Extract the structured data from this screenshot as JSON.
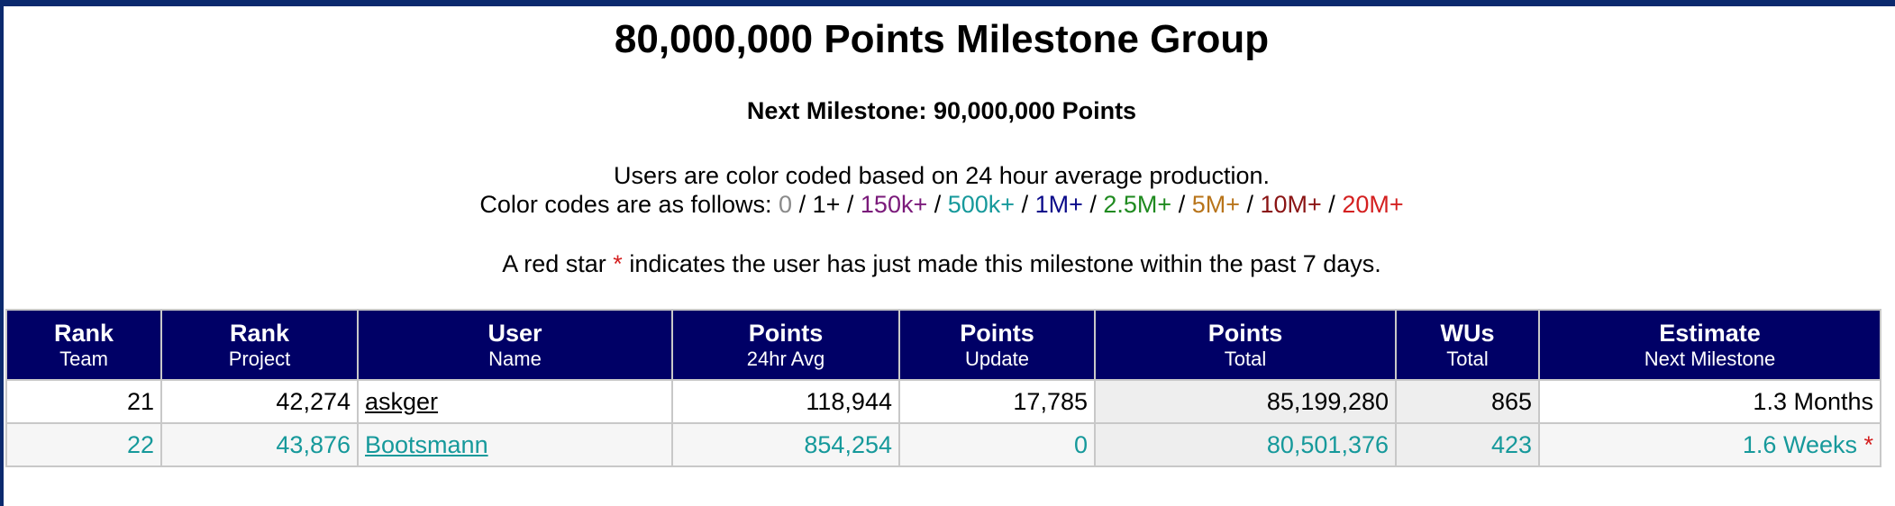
{
  "page": {
    "title": "80,000,000 Points Milestone Group",
    "next_milestone": "Next Milestone: 90,000,000 Points",
    "color_intro": "Users are color coded based on 24 hour average production.",
    "color_codes_prefix": "Color codes are as follows:",
    "color_codes": [
      {
        "label": "0",
        "color": "#8a8a8a"
      },
      {
        "label": "1+",
        "color": "#000000"
      },
      {
        "label": "150k+",
        "color": "#7a1a7a"
      },
      {
        "label": "500k+",
        "color": "#16999b"
      },
      {
        "label": "1M+",
        "color": "#0a0a8a"
      },
      {
        "label": "2.5M+",
        "color": "#1f8a1f"
      },
      {
        "label": "5M+",
        "color": "#b8741a"
      },
      {
        "label": "10M+",
        "color": "#8a1414"
      },
      {
        "label": "20M+",
        "color": "#d42020"
      }
    ],
    "star_note_before": "A red star",
    "star_symbol": "*",
    "star_note_after": "indicates the user has just made this milestone within the past 7 days."
  },
  "table": {
    "columns": [
      {
        "main": "Rank",
        "sub": "Team"
      },
      {
        "main": "Rank",
        "sub": "Project"
      },
      {
        "main": "User",
        "sub": "Name"
      },
      {
        "main": "Points",
        "sub": "24hr Avg"
      },
      {
        "main": "Points",
        "sub": "Update"
      },
      {
        "main": "Points",
        "sub": "Total"
      },
      {
        "main": "WUs",
        "sub": "Total"
      },
      {
        "main": "Estimate",
        "sub": "Next Milestone"
      }
    ],
    "rows": [
      {
        "rank_team": "21",
        "rank_project": "42,274",
        "user_name": "askger",
        "points_24hr": "118,944",
        "points_update": "17,785",
        "points_total": "85,199,280",
        "wus_total": "865",
        "estimate": "1.3 Months",
        "new_star": false,
        "color": "#000000"
      },
      {
        "rank_team": "22",
        "rank_project": "43,876",
        "user_name": "Bootsmann",
        "points_24hr": "854,254",
        "points_update": "0",
        "points_total": "80,501,376",
        "wus_total": "423",
        "estimate": "1.6 Weeks",
        "new_star": true,
        "color": "#16999b"
      }
    ]
  },
  "colors": {
    "header_bg": "#000066",
    "top_bar": "#0b2a6e",
    "star": "#d42020"
  }
}
